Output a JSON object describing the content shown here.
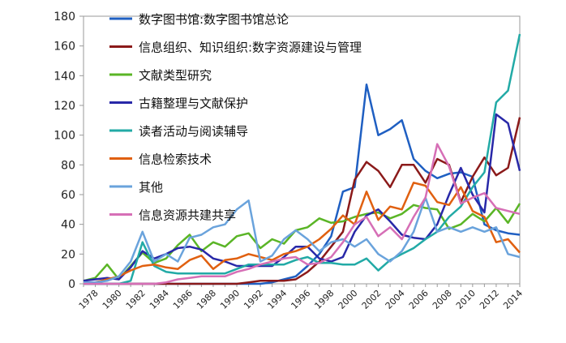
{
  "chart_data": {
    "type": "line",
    "title": "",
    "xlabel": "",
    "ylabel": "",
    "ylim": [
      0,
      180
    ],
    "yticks": [
      0,
      20,
      40,
      60,
      80,
      100,
      120,
      140,
      160,
      180
    ],
    "x": [
      1977,
      1978,
      1979,
      1980,
      1981,
      1982,
      1983,
      1984,
      1985,
      1986,
      1987,
      1988,
      1989,
      1990,
      1991,
      1992,
      1993,
      1994,
      1995,
      1996,
      1997,
      1998,
      1999,
      2000,
      2001,
      2002,
      2003,
      2004,
      2005,
      2006,
      2007,
      2008,
      2009,
      2010,
      2011,
      2012,
      2013,
      2014
    ],
    "xticks": [
      1978,
      1980,
      1982,
      1984,
      1986,
      1988,
      1990,
      1992,
      1994,
      1996,
      1998,
      2000,
      2002,
      2004,
      2006,
      2008,
      2010,
      2012,
      2014
    ],
    "grid": false,
    "legend_position": "top-left",
    "series": [
      {
        "name": "数字图书馆:数字图书馆总论",
        "color": "#1f5fc2",
        "values": [
          0,
          0,
          0,
          0,
          0,
          0,
          0,
          0,
          0,
          0,
          0,
          0,
          0,
          0,
          0,
          0,
          1,
          3,
          5,
          12,
          20,
          32,
          62,
          65,
          134,
          100,
          104,
          110,
          84,
          76,
          71,
          74,
          75,
          72,
          40,
          36,
          34,
          33
        ]
      },
      {
        "name": "信息组织、知识组织:数字资源建设与管理",
        "color": "#8b1a1a",
        "values": [
          0,
          0,
          0,
          0,
          0,
          0,
          0,
          0,
          0,
          0,
          0,
          0,
          0,
          0,
          1,
          2,
          2,
          2,
          3,
          8,
          15,
          25,
          35,
          70,
          82,
          76,
          65,
          80,
          80,
          68,
          84,
          80,
          55,
          72,
          85,
          73,
          78,
          112
        ]
      },
      {
        "name": "文献类型研究",
        "color": "#5ab526",
        "values": [
          2,
          4,
          13,
          3,
          12,
          21,
          14,
          17,
          26,
          33,
          22,
          28,
          25,
          32,
          34,
          24,
          30,
          27,
          36,
          38,
          44,
          41,
          42,
          45,
          47,
          48,
          44,
          47,
          53,
          51,
          50,
          37,
          40,
          47,
          42,
          51,
          41,
          54
        ]
      },
      {
        "name": "古籍整理与文献保护",
        "color": "#2828a8",
        "values": [
          2,
          3,
          4,
          3,
          11,
          22,
          17,
          20,
          24,
          25,
          23,
          17,
          15,
          12,
          12,
          12,
          12,
          18,
          25,
          25,
          17,
          15,
          18,
          35,
          46,
          50,
          42,
          33,
          31,
          30,
          40,
          60,
          78,
          60,
          48,
          114,
          108,
          76
        ]
      },
      {
        "name": "读者活动与阅读辅导",
        "color": "#22aaa6",
        "values": [
          0,
          0,
          0,
          0,
          2,
          28,
          12,
          8,
          7,
          7,
          7,
          7,
          7,
          10,
          13,
          13,
          13,
          13,
          16,
          18,
          14,
          14,
          13,
          13,
          17,
          9,
          16,
          20,
          24,
          30,
          35,
          45,
          52,
          65,
          75,
          122,
          130,
          168
        ]
      },
      {
        "name": "信息检索技术",
        "color": "#e06010",
        "values": [
          1,
          1,
          3,
          5,
          9,
          12,
          13,
          11,
          10,
          16,
          19,
          10,
          16,
          17,
          20,
          18,
          16,
          20,
          22,
          25,
          30,
          37,
          46,
          40,
          62,
          43,
          52,
          50,
          68,
          66,
          55,
          53,
          65,
          49,
          45,
          28,
          30,
          21
        ]
      },
      {
        "name": "其他",
        "color": "#6aa3dc",
        "values": [
          1,
          1,
          2,
          5,
          15,
          35,
          15,
          20,
          15,
          31,
          33,
          38,
          40,
          50,
          56,
          15,
          19,
          30,
          36,
          30,
          22,
          28,
          30,
          25,
          30,
          20,
          15,
          22,
          35,
          58,
          35,
          38,
          35,
          38,
          35,
          38,
          20,
          18
        ]
      },
      {
        "name": "信息资源共建共享",
        "color": "#d66fb6",
        "values": [
          0,
          0,
          0,
          0,
          0,
          0,
          0,
          1,
          3,
          4,
          5,
          5,
          5,
          8,
          10,
          13,
          15,
          17,
          18,
          13,
          14,
          18,
          28,
          40,
          45,
          32,
          38,
          30,
          45,
          58,
          94,
          79,
          54,
          58,
          61,
          51,
          49,
          47
        ]
      }
    ]
  }
}
